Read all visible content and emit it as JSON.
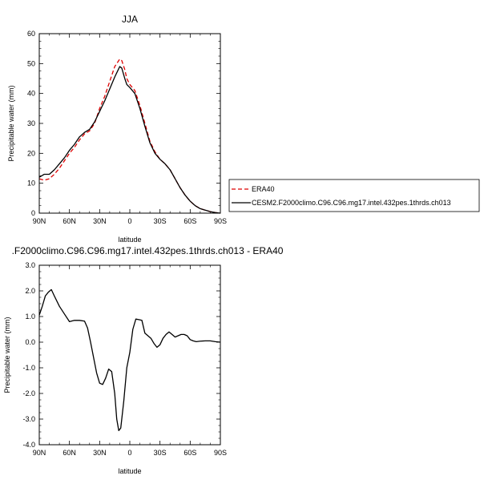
{
  "chart_data": [
    {
      "type": "line",
      "title": "JJA",
      "xlabel": "latitude",
      "ylabel": "Precipitable water (mm)",
      "xlim": [
        90,
        -90
      ],
      "ylim": [
        0,
        60
      ],
      "xtick_values": [
        90,
        60,
        30,
        0,
        -30,
        -60,
        -90
      ],
      "xtick_labels": [
        "90N",
        "60N",
        "30N",
        "0",
        "30S",
        "60S",
        "90S"
      ],
      "ytick_values": [
        0,
        10,
        20,
        30,
        40,
        50,
        60
      ],
      "ytick_labels": [
        "0",
        "10",
        "20",
        "30",
        "40",
        "50",
        "60"
      ],
      "legend_position": "right",
      "series": [
        {
          "name": "ERA40",
          "color": "#dd0000",
          "dash": "dashed",
          "x": [
            90,
            85,
            80,
            75,
            70,
            65,
            60,
            55,
            50,
            45,
            40,
            35,
            30,
            25,
            20,
            15,
            10,
            8,
            5,
            3,
            0,
            -5,
            -10,
            -15,
            -20,
            -25,
            -30,
            -35,
            -40,
            -45,
            -50,
            -55,
            -60,
            -65,
            -70,
            -75,
            -80,
            -85,
            -90
          ],
          "y": [
            11.5,
            11.0,
            11.5,
            13.0,
            15.0,
            17.5,
            20.0,
            22.0,
            24.5,
            26.5,
            27.5,
            30.0,
            35.0,
            39.0,
            44.0,
            49.0,
            51.5,
            51.0,
            48.0,
            45.0,
            43.0,
            41.0,
            36.0,
            30.0,
            24.0,
            20.5,
            18.0,
            16.5,
            14.5,
            11.5,
            8.5,
            6.0,
            4.0,
            2.5,
            1.5,
            1.0,
            0.5,
            0.2,
            0.0
          ]
        },
        {
          "name": "CESM2.F2000climo.C96.C96.mg17.intel.432pes.1thrds.ch013",
          "color": "#000000",
          "dash": "solid",
          "x": [
            90,
            85,
            80,
            75,
            70,
            65,
            60,
            55,
            50,
            45,
            40,
            35,
            30,
            25,
            20,
            15,
            10,
            8,
            5,
            3,
            0,
            -5,
            -10,
            -15,
            -20,
            -25,
            -30,
            -35,
            -40,
            -45,
            -50,
            -55,
            -60,
            -65,
            -70,
            -75,
            -80,
            -85,
            -90
          ],
          "y": [
            12.0,
            13.0,
            13.0,
            14.5,
            16.5,
            18.5,
            21.0,
            23.0,
            25.5,
            27.0,
            28.0,
            30.5,
            34.0,
            37.5,
            41.5,
            45.5,
            49.0,
            48.5,
            45.0,
            43.0,
            42.0,
            40.0,
            35.0,
            29.0,
            23.5,
            20.0,
            18.0,
            16.5,
            14.5,
            11.5,
            8.5,
            6.0,
            4.0,
            2.5,
            1.5,
            1.0,
            0.5,
            0.2,
            0.0
          ]
        }
      ]
    },
    {
      "type": "line",
      "title": ".F2000climo.C96.C96.mg17.intel.432pes.1thrds.ch013 - ERA40",
      "xlabel": "latitude",
      "ylabel": "Precipitable water (mm)",
      "xlim": [
        90,
        -90
      ],
      "ylim": [
        -4.0,
        3.0
      ],
      "xtick_values": [
        90,
        60,
        30,
        0,
        -30,
        -60,
        -90
      ],
      "xtick_labels": [
        "90N",
        "60N",
        "30N",
        "0",
        "30S",
        "60S",
        "90S"
      ],
      "ytick_values": [
        -4.0,
        -3.0,
        -2.0,
        -1.0,
        0.0,
        1.0,
        2.0,
        3.0
      ],
      "ytick_labels": [
        "-4.0",
        "-3.0",
        "-2.0",
        "-1.0",
        "0.0",
        "1.0",
        "2.0",
        "3.0"
      ],
      "series": [
        {
          "color": "#000000",
          "dash": "solid",
          "x": [
            90,
            87,
            84,
            81,
            78,
            75,
            70,
            65,
            60,
            55,
            50,
            45,
            42,
            39,
            36,
            33,
            30,
            27,
            24,
            21,
            18,
            15,
            13,
            11,
            9,
            6,
            3,
            0,
            -3,
            -6,
            -9,
            -12,
            -15,
            -18,
            -21,
            -24,
            -27,
            -30,
            -33,
            -36,
            -39,
            -42,
            -45,
            -48,
            -51,
            -54,
            -57,
            -60,
            -63,
            -66,
            -70,
            -75,
            -80,
            -85,
            -90
          ],
          "y": [
            1.05,
            1.4,
            1.8,
            1.95,
            2.05,
            1.8,
            1.4,
            1.1,
            0.8,
            0.85,
            0.85,
            0.82,
            0.55,
            0.0,
            -0.6,
            -1.2,
            -1.6,
            -1.65,
            -1.4,
            -1.05,
            -1.15,
            -2.0,
            -3.0,
            -3.45,
            -3.35,
            -2.3,
            -1.0,
            -0.4,
            0.5,
            0.9,
            0.88,
            0.85,
            0.35,
            0.25,
            0.15,
            -0.05,
            -0.2,
            -0.1,
            0.15,
            0.3,
            0.4,
            0.3,
            0.2,
            0.25,
            0.3,
            0.3,
            0.25,
            0.1,
            0.05,
            0.02,
            0.04,
            0.05,
            0.05,
            0.02,
            0.0
          ]
        }
      ]
    }
  ]
}
